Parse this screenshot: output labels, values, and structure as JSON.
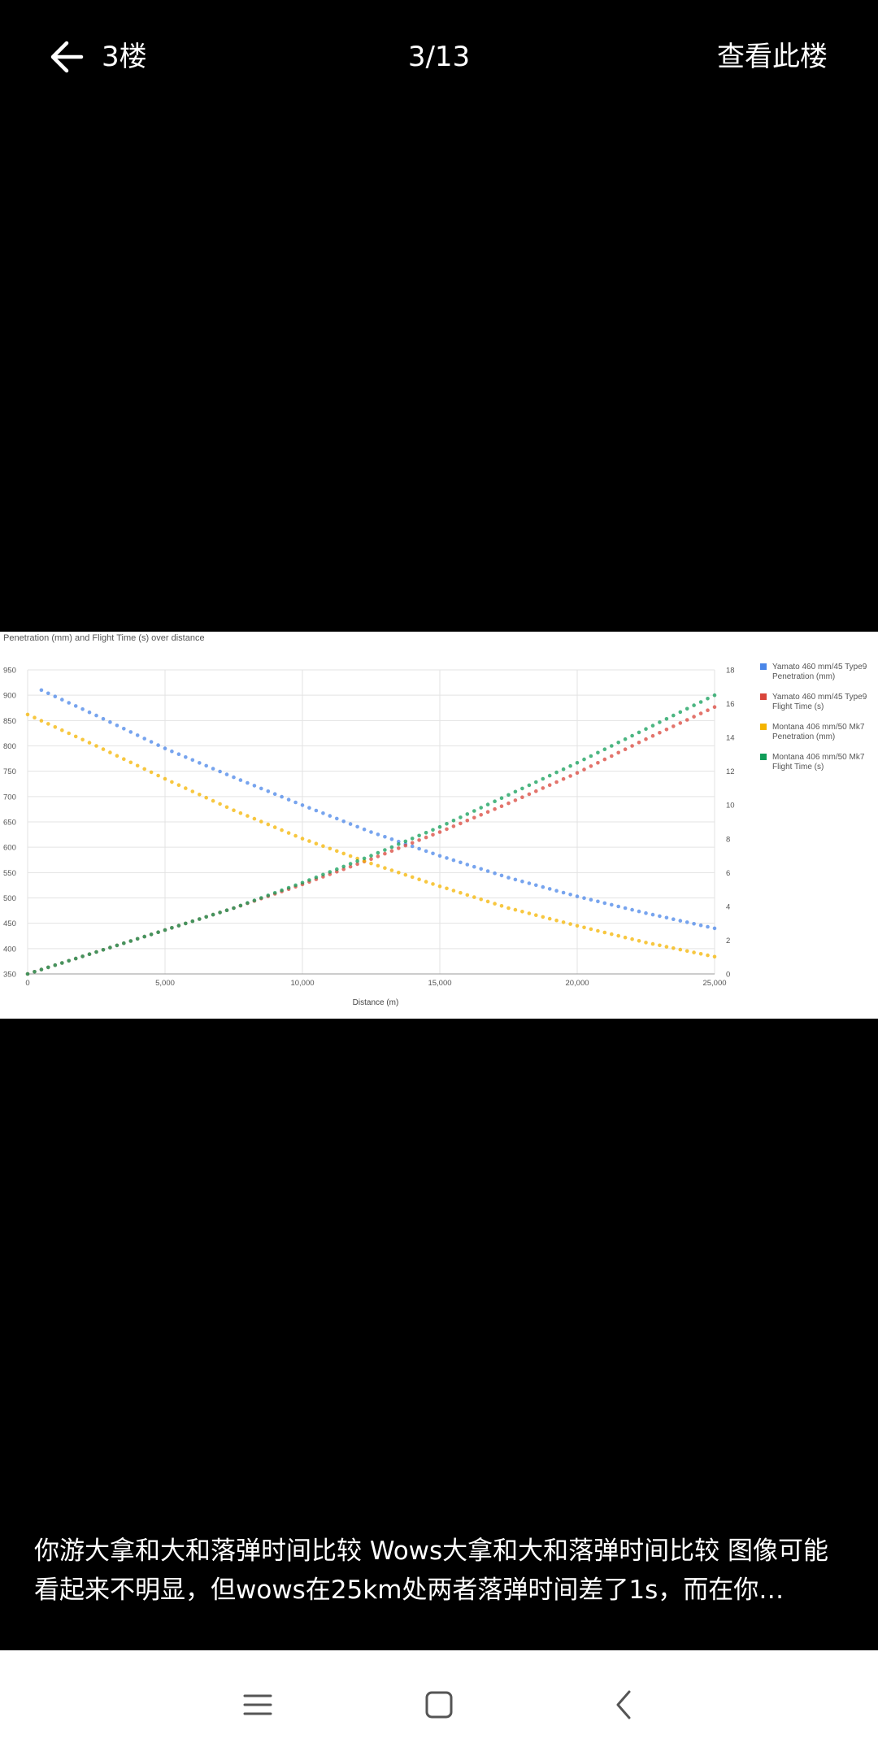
{
  "header": {
    "floor_label": "3楼",
    "page_counter": "3/13",
    "view_floor_label": "查看此楼",
    "back_icon": "arrow-left-icon"
  },
  "chart": {
    "title": "Penetration (mm) and Flight Time (s) over distance",
    "xlabel": "Distance (m)",
    "left_ticks": [
      "950",
      "900",
      "850",
      "800",
      "750",
      "700",
      "650",
      "600",
      "550",
      "500",
      "450",
      "400",
      "350"
    ],
    "right_ticks": [
      "18",
      "16",
      "14",
      "12",
      "10",
      "8",
      "6",
      "4",
      "2",
      "0"
    ],
    "x_ticks": [
      "0",
      "5,000",
      "10,000",
      "15,000",
      "20,000",
      "25,000"
    ],
    "legend": [
      {
        "line1": "Yamato 460 mm/45 Type9",
        "line2": "Penetration (mm)",
        "color": "#4a86e8"
      },
      {
        "line1": "Yamato 460 mm/45 Type9",
        "line2": "Flight Time (s)",
        "color": "#d9453b"
      },
      {
        "line1": "Montana 406 mm/50 Mk7",
        "line2": "Penetration (mm)",
        "color": "#f4b400"
      },
      {
        "line1": "Montana 406 mm/50 Mk7",
        "line2": "Flight Time (s)",
        "color": "#109d58"
      }
    ]
  },
  "chart_data": {
    "type": "scatter",
    "title": "Penetration (mm) and Flight Time (s) over distance",
    "xlabel": "Distance (m)",
    "xlim": [
      0,
      25000
    ],
    "ylim_left": [
      350,
      950
    ],
    "ylim_right": [
      0,
      18
    ],
    "grid": true,
    "legend_position": "right",
    "series": [
      {
        "name": "Yamato 460 mm/45 Type9 Penetration (mm)",
        "axis": "left",
        "color": "#4a86e8",
        "x": [
          500,
          2500,
          5000,
          7500,
          10000,
          12500,
          15000,
          17500,
          20000,
          22500,
          25000
        ],
        "y": [
          910,
          860,
          795,
          738,
          683,
          630,
          583,
          540,
          503,
          470,
          440
        ]
      },
      {
        "name": "Yamato 460 mm/45 Type9 Flight Time (s)",
        "axis": "right",
        "color": "#d9453b",
        "x": [
          0,
          2500,
          5000,
          7500,
          10000,
          12500,
          15000,
          17500,
          20000,
          22500,
          25000
        ],
        "y": [
          0,
          1.3,
          2.6,
          3.9,
          5.3,
          6.8,
          8.4,
          10.1,
          11.9,
          13.9,
          15.8
        ]
      },
      {
        "name": "Montana 406 mm/50 Mk7 Penetration (mm)",
        "axis": "left",
        "color": "#f4b400",
        "x": [
          0,
          2500,
          5000,
          7500,
          10000,
          12500,
          15000,
          17500,
          20000,
          22500,
          25000
        ],
        "y": [
          862,
          800,
          735,
          673,
          617,
          568,
          523,
          480,
          445,
          412,
          384
        ]
      },
      {
        "name": "Montana 406 mm/50 Mk7 Flight Time (s)",
        "axis": "right",
        "color": "#109d58",
        "x": [
          0,
          2500,
          5000,
          7500,
          10000,
          12500,
          15000,
          17500,
          20000,
          22500,
          25000
        ],
        "y": [
          0,
          1.3,
          2.6,
          3.9,
          5.4,
          7.0,
          8.7,
          10.6,
          12.5,
          14.5,
          16.5
        ]
      }
    ]
  },
  "caption": "你游大拿和大和落弹时间比较 Wows大拿和大和落弹时间比较 图像可能看起来不明显，但wows在25km处两者落弹时间差了1s，而在你…",
  "navbar": {
    "menu_icon": "menu-icon",
    "home_icon": "home-icon",
    "back_icon": "back-triangle-icon"
  }
}
